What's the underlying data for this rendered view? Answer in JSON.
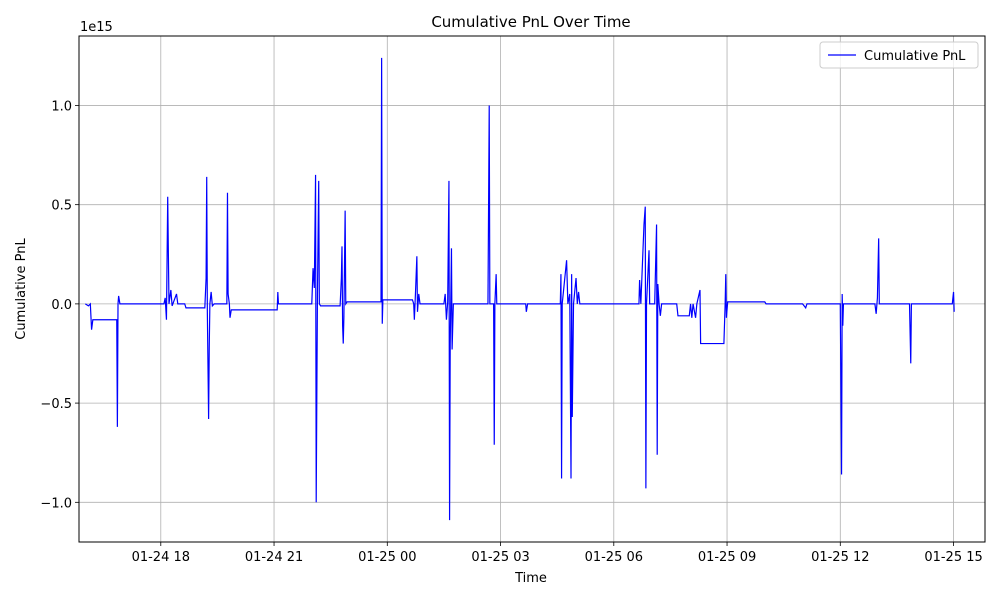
{
  "chart_data": {
    "type": "line",
    "title": "Cumulative PnL Over Time",
    "xlabel": "Time",
    "ylabel": "Cumulative PnL",
    "y_scale_label": "1e15",
    "y_unit_multiplier": 1000000000000000.0,
    "ylim": [
      -1.2,
      1.35
    ],
    "xlim": [
      "2025-01-24 15:50",
      "2025-01-25 15:50"
    ],
    "x_ticks": [
      {
        "t": "2025-01-24 18:00",
        "label": "01-24 18"
      },
      {
        "t": "2025-01-24 21:00",
        "label": "01-24 21"
      },
      {
        "t": "2025-01-25 00:00",
        "label": "01-25 00"
      },
      {
        "t": "2025-01-25 03:00",
        "label": "01-25 03"
      },
      {
        "t": "2025-01-25 06:00",
        "label": "01-25 06"
      },
      {
        "t": "2025-01-25 09:00",
        "label": "01-25 09"
      },
      {
        "t": "2025-01-25 12:00",
        "label": "01-25 12"
      },
      {
        "t": "2025-01-25 15:00",
        "label": "01-25 15"
      }
    ],
    "y_ticks": [
      {
        "v": -1.0,
        "label": "−1.0"
      },
      {
        "v": -0.5,
        "label": "−0.5"
      },
      {
        "v": 0.0,
        "label": "0.0"
      },
      {
        "v": 0.5,
        "label": "0.5"
      },
      {
        "v": 1.0,
        "label": "1.0"
      }
    ],
    "grid": true,
    "legend_position": "top-right",
    "series": [
      {
        "name": "Cumulative PnL",
        "color": "#0000ff",
        "points": [
          [
            "2025-01-24 16:00",
            0.0
          ],
          [
            "2025-01-24 16:05",
            -0.01
          ],
          [
            "2025-01-24 16:08",
            0.0
          ],
          [
            "2025-01-24 16:10",
            -0.13
          ],
          [
            "2025-01-24 16:12",
            -0.08
          ],
          [
            "2025-01-24 16:50",
            -0.08
          ],
          [
            "2025-01-24 16:51",
            -0.62
          ],
          [
            "2025-01-24 16:52",
            0.0
          ],
          [
            "2025-01-24 16:53",
            0.04
          ],
          [
            "2025-01-24 16:55",
            0.0
          ],
          [
            "2025-01-24 18:05",
            0.0
          ],
          [
            "2025-01-24 18:07",
            0.03
          ],
          [
            "2025-01-24 18:09",
            -0.08
          ],
          [
            "2025-01-24 18:11",
            0.54
          ],
          [
            "2025-01-24 18:13",
            0.0
          ],
          [
            "2025-01-24 18:16",
            0.07
          ],
          [
            "2025-01-24 18:18",
            -0.01
          ],
          [
            "2025-01-24 18:25",
            0.05
          ],
          [
            "2025-01-24 18:27",
            0.0
          ],
          [
            "2025-01-24 18:38",
            0.0
          ],
          [
            "2025-01-24 18:40",
            -0.02
          ],
          [
            "2025-01-24 19:10",
            -0.02
          ],
          [
            "2025-01-24 19:12",
            0.13
          ],
          [
            "2025-01-24 19:13",
            0.64
          ],
          [
            "2025-01-24 19:14",
            -0.04
          ],
          [
            "2025-01-24 19:16",
            -0.58
          ],
          [
            "2025-01-24 19:17",
            -0.22
          ],
          [
            "2025-01-24 19:18",
            0.0
          ],
          [
            "2025-01-24 19:20",
            0.06
          ],
          [
            "2025-01-24 19:22",
            -0.01
          ],
          [
            "2025-01-24 19:25",
            0.0
          ],
          [
            "2025-01-24 19:45",
            0.0
          ],
          [
            "2025-01-24 19:46",
            0.56
          ],
          [
            "2025-01-24 19:47",
            0.05
          ],
          [
            "2025-01-24 19:49",
            0.0
          ],
          [
            "2025-01-24 19:50",
            -0.07
          ],
          [
            "2025-01-24 19:52",
            -0.03
          ],
          [
            "2025-01-24 20:30",
            -0.03
          ],
          [
            "2025-01-24 21:05",
            -0.03
          ],
          [
            "2025-01-24 21:06",
            0.06
          ],
          [
            "2025-01-24 21:07",
            0.0
          ],
          [
            "2025-01-24 22:00",
            0.0
          ],
          [
            "2025-01-24 22:02",
            0.18
          ],
          [
            "2025-01-24 22:04",
            0.08
          ],
          [
            "2025-01-24 22:06",
            0.65
          ],
          [
            "2025-01-24 22:07",
            -1.0
          ],
          [
            "2025-01-24 22:08",
            -0.46
          ],
          [
            "2025-01-24 22:09",
            0.05
          ],
          [
            "2025-01-24 22:11",
            0.62
          ],
          [
            "2025-01-24 22:12",
            0.0
          ],
          [
            "2025-01-24 22:14",
            -0.01
          ],
          [
            "2025-01-24 22:45",
            -0.01
          ],
          [
            "2025-01-24 22:47",
            0.13
          ],
          [
            "2025-01-24 22:48",
            0.29
          ],
          [
            "2025-01-24 22:49",
            -0.11
          ],
          [
            "2025-01-24 22:50",
            -0.2
          ],
          [
            "2025-01-24 22:51",
            -0.07
          ],
          [
            "2025-01-24 22:53",
            0.47
          ],
          [
            "2025-01-24 22:54",
            0.0
          ],
          [
            "2025-01-24 22:56",
            0.01
          ],
          [
            "2025-01-24 23:50",
            0.01
          ],
          [
            "2025-01-24 23:51",
            1.24
          ],
          [
            "2025-01-24 23:52",
            -0.1
          ],
          [
            "2025-01-24 23:53",
            0.02
          ],
          [
            "2025-01-25 00:30",
            0.02
          ],
          [
            "2025-01-25 00:40",
            0.02
          ],
          [
            "2025-01-25 00:42",
            0.0
          ],
          [
            "2025-01-25 00:43",
            -0.08
          ],
          [
            "2025-01-25 00:45",
            0.07
          ],
          [
            "2025-01-25 00:47",
            0.24
          ],
          [
            "2025-01-25 00:48",
            -0.04
          ],
          [
            "2025-01-25 00:50",
            0.05
          ],
          [
            "2025-01-25 00:52",
            0.0
          ],
          [
            "2025-01-25 01:30",
            0.0
          ],
          [
            "2025-01-25 01:32",
            0.05
          ],
          [
            "2025-01-25 01:34",
            -0.08
          ],
          [
            "2025-01-25 01:36",
            0.01
          ],
          [
            "2025-01-25 01:38",
            0.62
          ],
          [
            "2025-01-25 01:39",
            -1.09
          ],
          [
            "2025-01-25 01:40",
            -0.2
          ],
          [
            "2025-01-25 01:42",
            0.28
          ],
          [
            "2025-01-25 01:43",
            -0.23
          ],
          [
            "2025-01-25 01:45",
            0.0
          ],
          [
            "2025-01-25 02:40",
            0.0
          ],
          [
            "2025-01-25 02:42",
            1.0
          ],
          [
            "2025-01-25 02:43",
            0.0
          ],
          [
            "2025-01-25 02:49",
            0.0
          ],
          [
            "2025-01-25 02:50",
            -0.71
          ],
          [
            "2025-01-25 02:51",
            0.0
          ],
          [
            "2025-01-25 02:53",
            0.15
          ],
          [
            "2025-01-25 02:54",
            0.0
          ],
          [
            "2025-01-25 03:40",
            0.0
          ],
          [
            "2025-01-25 03:41",
            -0.04
          ],
          [
            "2025-01-25 03:43",
            0.0
          ],
          [
            "2025-01-25 04:35",
            0.0
          ],
          [
            "2025-01-25 04:36",
            0.15
          ],
          [
            "2025-01-25 04:37",
            -0.88
          ],
          [
            "2025-01-25 04:38",
            0.0
          ],
          [
            "2025-01-25 04:45",
            0.22
          ],
          [
            "2025-01-25 04:47",
            0.0
          ],
          [
            "2025-01-25 04:50",
            0.05
          ],
          [
            "2025-01-25 04:52",
            -0.88
          ],
          [
            "2025-01-25 04:53",
            0.15
          ],
          [
            "2025-01-25 04:54",
            -0.57
          ],
          [
            "2025-01-25 04:56",
            0.0
          ],
          [
            "2025-01-25 05:00",
            0.13
          ],
          [
            "2025-01-25 05:02",
            0.0
          ],
          [
            "2025-01-25 05:04",
            0.06
          ],
          [
            "2025-01-25 05:06",
            0.0
          ],
          [
            "2025-01-25 06:40",
            0.0
          ],
          [
            "2025-01-25 06:41",
            0.12
          ],
          [
            "2025-01-25 06:43",
            0.0
          ],
          [
            "2025-01-25 06:48",
            0.4
          ],
          [
            "2025-01-25 06:50",
            0.49
          ],
          [
            "2025-01-25 06:51",
            -0.93
          ],
          [
            "2025-01-25 06:52",
            0.0
          ],
          [
            "2025-01-25 06:56",
            0.27
          ],
          [
            "2025-01-25 06:57",
            0.0
          ],
          [
            "2025-01-25 07:05",
            0.0
          ],
          [
            "2025-01-25 07:08",
            0.4
          ],
          [
            "2025-01-25 07:09",
            -0.76
          ],
          [
            "2025-01-25 07:10",
            0.1
          ],
          [
            "2025-01-25 07:12",
            0.0
          ],
          [
            "2025-01-25 07:14",
            -0.06
          ],
          [
            "2025-01-25 07:16",
            0.0
          ],
          [
            "2025-01-25 07:40",
            0.0
          ],
          [
            "2025-01-25 07:42",
            -0.06
          ],
          [
            "2025-01-25 08:00",
            -0.06
          ],
          [
            "2025-01-25 08:02",
            0.0
          ],
          [
            "2025-01-25 08:04",
            -0.07
          ],
          [
            "2025-01-25 08:06",
            0.0
          ],
          [
            "2025-01-25 08:10",
            -0.07
          ],
          [
            "2025-01-25 08:12",
            0.0
          ],
          [
            "2025-01-25 08:17",
            0.07
          ],
          [
            "2025-01-25 08:18",
            -0.2
          ],
          [
            "2025-01-25 08:55",
            -0.2
          ],
          [
            "2025-01-25 08:57",
            0.0
          ],
          [
            "2025-01-25 08:58",
            0.15
          ],
          [
            "2025-01-25 08:59",
            -0.07
          ],
          [
            "2025-01-25 09:01",
            0.01
          ],
          [
            "2025-01-25 10:00",
            0.01
          ],
          [
            "2025-01-25 10:02",
            0.0
          ],
          [
            "2025-01-25 11:00",
            0.0
          ],
          [
            "2025-01-25 11:05",
            -0.02
          ],
          [
            "2025-01-25 11:07",
            0.0
          ],
          [
            "2025-01-25 12:00",
            0.0
          ],
          [
            "2025-01-25 12:02",
            -0.86
          ],
          [
            "2025-01-25 12:03",
            0.05
          ],
          [
            "2025-01-25 12:04",
            -0.11
          ],
          [
            "2025-01-25 12:05",
            0.0
          ],
          [
            "2025-01-25 12:55",
            0.0
          ],
          [
            "2025-01-25 12:57",
            -0.05
          ],
          [
            "2025-01-25 12:59",
            0.03
          ],
          [
            "2025-01-25 13:01",
            0.33
          ],
          [
            "2025-01-25 13:02",
            0.0
          ],
          [
            "2025-01-25 13:50",
            0.0
          ],
          [
            "2025-01-25 13:52",
            -0.3
          ],
          [
            "2025-01-25 13:53",
            0.0
          ],
          [
            "2025-01-25 14:58",
            0.0
          ],
          [
            "2025-01-25 15:00",
            0.06
          ],
          [
            "2025-01-25 15:01",
            -0.04
          ]
        ]
      }
    ]
  }
}
